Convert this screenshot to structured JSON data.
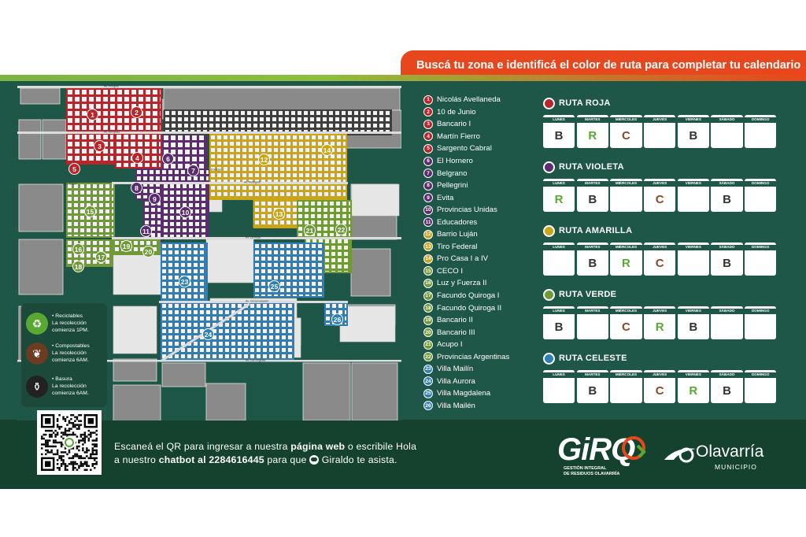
{
  "banner": {
    "text": "Buscá tu zona e identificá el color de ruta para completar tu calendario"
  },
  "map": {
    "streets": [
      "Av. Pringles",
      "Av. Enriquez",
      "Av. Pellegrini",
      "Av. La Rioja",
      "Av. Colon",
      "Av. Dorrego",
      "Av. Circunvalación",
      "Av. Los Orgidas"
    ],
    "markers": [
      {
        "n": "1",
        "color": "#b8262c"
      },
      {
        "n": "2",
        "color": "#b8262c"
      },
      {
        "n": "3",
        "color": "#b8262c"
      },
      {
        "n": "4",
        "color": "#b8262c"
      },
      {
        "n": "5",
        "color": "#b8262c"
      },
      {
        "n": "6",
        "color": "#5b2c6f"
      },
      {
        "n": "7",
        "color": "#5b2c6f"
      },
      {
        "n": "8",
        "color": "#5b2c6f"
      },
      {
        "n": "9",
        "color": "#5b2c6f"
      },
      {
        "n": "10",
        "color": "#5b2c6f"
      },
      {
        "n": "11",
        "color": "#5b2c6f"
      },
      {
        "n": "12",
        "color": "#c9a51a"
      },
      {
        "n": "13",
        "color": "#c9a51a"
      },
      {
        "n": "14",
        "color": "#c9a51a"
      },
      {
        "n": "15",
        "color": "#6f9a36"
      },
      {
        "n": "16",
        "color": "#6f9a36"
      },
      {
        "n": "17",
        "color": "#6f9a36"
      },
      {
        "n": "18",
        "color": "#6f9a36"
      },
      {
        "n": "19",
        "color": "#6f9a36"
      },
      {
        "n": "20",
        "color": "#6f9a36"
      },
      {
        "n": "21",
        "color": "#6f9a36"
      },
      {
        "n": "22",
        "color": "#6f9a36"
      },
      {
        "n": "23",
        "color": "#2f7fb5"
      },
      {
        "n": "24",
        "color": "#2f7fb5"
      },
      {
        "n": "25",
        "color": "#2f7fb5"
      },
      {
        "n": "26",
        "color": "#2f7fb5"
      }
    ]
  },
  "legend": [
    {
      "icon": "recycle-icon",
      "color": "#5aa834",
      "glyph": "♻",
      "title": "• Reciclables",
      "l1": "La recolección",
      "l2": "comienza 1PM."
    },
    {
      "icon": "leaf-icon",
      "color": "#6b3b22",
      "glyph": "❦",
      "title": "• Compostables",
      "l1": "La recolección",
      "l2": "comienza 6AM."
    },
    {
      "icon": "trash-bag-icon",
      "color": "#222222",
      "glyph": "⚱",
      "title": "• Basura",
      "l1": "La recolección",
      "l2": "comienza 6AM."
    }
  ],
  "zones": [
    {
      "n": "1",
      "name": "Nicolás Avellaneda",
      "color": "#b8262c"
    },
    {
      "n": "2",
      "name": "10 de Junio",
      "color": "#b8262c"
    },
    {
      "n": "3",
      "name": "Bancario I",
      "color": "#b8262c"
    },
    {
      "n": "4",
      "name": "Martín Fierro",
      "color": "#b8262c"
    },
    {
      "n": "5",
      "name": "Sargento Cabral",
      "color": "#b8262c"
    },
    {
      "n": "6",
      "name": "El Hornero",
      "color": "#5b2c6f"
    },
    {
      "n": "7",
      "name": "Belgrano",
      "color": "#5b2c6f"
    },
    {
      "n": "8",
      "name": "Pellegrini",
      "color": "#5b2c6f"
    },
    {
      "n": "9",
      "name": "Evita",
      "color": "#5b2c6f"
    },
    {
      "n": "10",
      "name": "Provincias Unidas",
      "color": "#5b2c6f"
    },
    {
      "n": "11",
      "name": "Educadores",
      "color": "#5b2c6f"
    },
    {
      "n": "12",
      "name": "Barrio Luján",
      "color": "#c9a51a"
    },
    {
      "n": "13",
      "name": "Tiro Federal",
      "color": "#c9a51a"
    },
    {
      "n": "14",
      "name": "Pro Casa I a IV",
      "color": "#c9a51a"
    },
    {
      "n": "15",
      "name": "CECO I",
      "color": "#6f9a36"
    },
    {
      "n": "16",
      "name": "Luz y Fuerza II",
      "color": "#6f9a36"
    },
    {
      "n": "17",
      "name": "Facundo Quiroga I",
      "color": "#6f9a36"
    },
    {
      "n": "18",
      "name": "Facundo Quiroga II",
      "color": "#6f9a36"
    },
    {
      "n": "19",
      "name": "Bancario II",
      "color": "#6f9a36"
    },
    {
      "n": "20",
      "name": "Bancario III",
      "color": "#6f9a36"
    },
    {
      "n": "21",
      "name": "Acupo I",
      "color": "#6f9a36"
    },
    {
      "n": "22",
      "name": "Provincias Argentinas",
      "color": "#6f9a36"
    },
    {
      "n": "23",
      "name": "Villa Mailín",
      "color": "#2f7fb5"
    },
    {
      "n": "24",
      "name": "Villa Aurora",
      "color": "#2f7fb5"
    },
    {
      "n": "25",
      "name": "Villa Magdalena",
      "color": "#2f7fb5"
    },
    {
      "n": "26",
      "name": "Villa Mailén",
      "color": "#2f7fb5"
    }
  ],
  "day_names": [
    "Lunes",
    "Martes",
    "Miércoles",
    "Jueves",
    "Viernes",
    "Sábado",
    "Domingo"
  ],
  "routes": [
    {
      "title": "RUTA ROJA",
      "color": "#b8262c",
      "days": [
        "B",
        "R",
        "C",
        "",
        "B",
        "",
        ""
      ]
    },
    {
      "title": "RUTA VIOLETA",
      "color": "#5b2c6f",
      "days": [
        "R",
        "B",
        "",
        "C",
        "",
        "B",
        ""
      ]
    },
    {
      "title": "RUTA AMARILLA",
      "color": "#c9a51a",
      "days": [
        "",
        "B",
        "R",
        "C",
        "",
        "B",
        ""
      ]
    },
    {
      "title": "RUTA VERDE",
      "color": "#6f9a36",
      "days": [
        "B",
        "",
        "C",
        "R",
        "B",
        "",
        ""
      ]
    },
    {
      "title": "RUTA CELESTE",
      "color": "#2f7fb5",
      "days": [
        "",
        "B",
        "",
        "C",
        "R",
        "B",
        ""
      ]
    }
  ],
  "footer": {
    "t1": "Escaneá el QR para ingresar a nuestra ",
    "t1b": "página web",
    "t2": " o escribile Hola",
    "t3": "a nuestro ",
    "t3b": "chatbot al 2284616445",
    "t4": " para que ",
    "t5": " Giraldo te asista.",
    "giro_word": "GiRQ",
    "giro_sub1": "GESTIÓN INTEGRAL",
    "giro_sub2": "DE RESIDUOS OLAVARRÍA",
    "olav_name": "Olavarría",
    "olav_sub": "MUNICIPIO"
  }
}
